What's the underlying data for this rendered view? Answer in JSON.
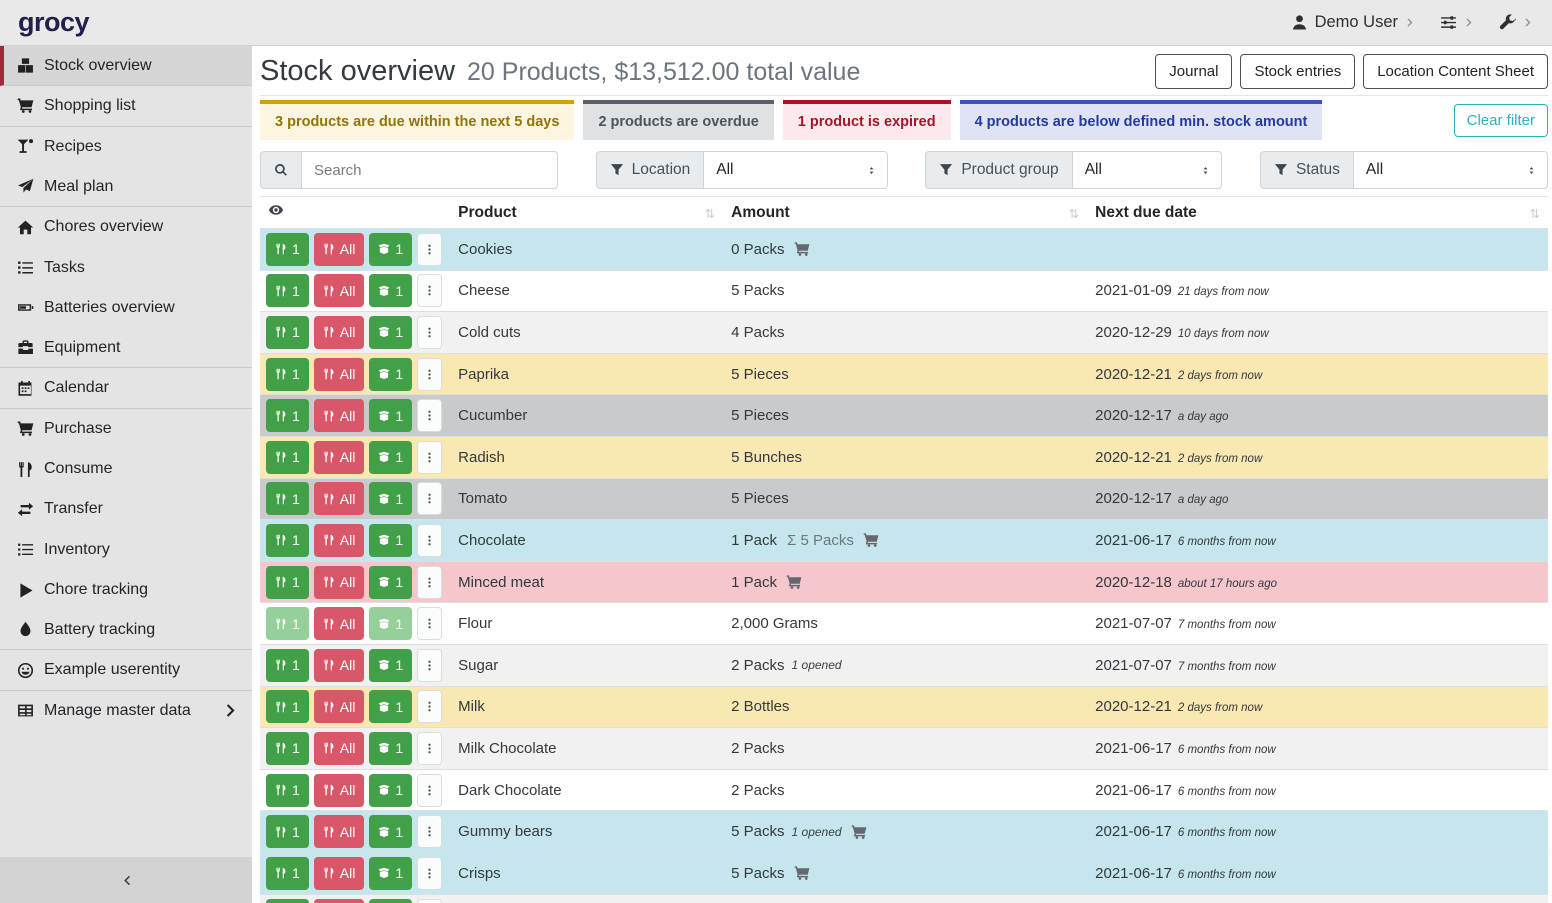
{
  "topbar": {
    "logo": "grocy",
    "user_label": "Demo User",
    "menus": [
      {
        "icon": "user-icon",
        "label": "Demo User"
      },
      {
        "icon": "sliders-icon"
      },
      {
        "icon": "wrench-icon"
      }
    ]
  },
  "sidebar": {
    "items": [
      {
        "icon": "boxes-icon",
        "label": "Stock overview",
        "active": true,
        "divider_after": true
      },
      {
        "icon": "shopping-cart-icon",
        "label": "Shopping list",
        "divider_after": true
      },
      {
        "icon": "cocktail-glass-icon",
        "label": "Recipes"
      },
      {
        "icon": "paper-plane-icon",
        "label": "Meal plan",
        "divider_after": true
      },
      {
        "icon": "home-icon",
        "label": "Chores overview"
      },
      {
        "icon": "tasks-icon",
        "label": "Tasks"
      },
      {
        "icon": "battery-icon",
        "label": "Batteries overview"
      },
      {
        "icon": "toolbox-icon",
        "label": "Equipment",
        "divider_after": true
      },
      {
        "icon": "calendar-icon",
        "label": "Calendar",
        "divider_after": true
      },
      {
        "icon": "shopping-cart-icon",
        "label": "Purchase"
      },
      {
        "icon": "utensils-icon",
        "label": "Consume"
      },
      {
        "icon": "exchange-arrows-icon",
        "label": "Transfer"
      },
      {
        "icon": "list-icon",
        "label": "Inventory"
      },
      {
        "icon": "play-icon",
        "label": "Chore tracking"
      },
      {
        "icon": "droplet-icon",
        "label": "Battery tracking",
        "divider_after": true
      },
      {
        "icon": "smiley-icon",
        "label": "Example userentity",
        "divider_after": true
      },
      {
        "icon": "table-grid-icon",
        "label": "Manage master data",
        "chevron": true
      }
    ],
    "collapse_icon": "chevron-left-icon"
  },
  "header": {
    "title": "Stock overview",
    "subtitle": "20 Products, $13,512.00 total value",
    "buttons": [
      "Journal",
      "Stock entries",
      "Location Content Sheet"
    ]
  },
  "banners": [
    {
      "type": "warning",
      "text": "3 products are due within the next 5 days"
    },
    {
      "type": "secondary",
      "text": "2 products are overdue"
    },
    {
      "type": "danger",
      "text": "1 product is expired"
    },
    {
      "type": "primary",
      "text": "4 products are below defined min. stock amount"
    }
  ],
  "clear_filter_label": "Clear filter",
  "filters": {
    "search_placeholder": "Search",
    "groups": [
      {
        "icon": "funnel-icon",
        "label": "Location",
        "value": "All"
      },
      {
        "icon": "funnel-icon",
        "label": "Product group",
        "value": "All"
      },
      {
        "icon": "funnel-icon",
        "label": "Status",
        "value": "All"
      }
    ]
  },
  "table": {
    "columns": [
      "Product",
      "Amount",
      "Next due date"
    ],
    "sort_glyph": "⇅",
    "row_buttons": {
      "consume_one": "1",
      "consume_all": "All",
      "open_one": "1"
    },
    "rows": [
      {
        "product": "Cookies",
        "amount": "0 Packs",
        "cart": true,
        "style": "info",
        "date": "",
        "relative": ""
      },
      {
        "product": "Cheese",
        "amount": "5 Packs",
        "style": "plain",
        "date": "2021-01-09",
        "relative": "21 days from now"
      },
      {
        "product": "Cold cuts",
        "amount": "4 Packs",
        "style": "stripe",
        "date": "2020-12-29",
        "relative": "10 days from now"
      },
      {
        "product": "Paprika",
        "amount": "5 Pieces",
        "style": "warning",
        "date": "2020-12-21",
        "relative": "2 days from now"
      },
      {
        "product": "Cucumber",
        "amount": "5 Pieces",
        "style": "secondary",
        "date": "2020-12-17",
        "relative": "a day ago"
      },
      {
        "product": "Radish",
        "amount": "5 Bunches",
        "style": "warning",
        "date": "2020-12-21",
        "relative": "2 days from now"
      },
      {
        "product": "Tomato",
        "amount": "5 Pieces",
        "style": "secondary",
        "date": "2020-12-17",
        "relative": "a day ago"
      },
      {
        "product": "Chocolate",
        "amount": "1 Pack",
        "sum": "Σ 5 Packs",
        "cart": true,
        "style": "info",
        "date": "2021-06-17",
        "relative": "6 months from now"
      },
      {
        "product": "Minced meat",
        "amount": "1 Pack",
        "cart": true,
        "style": "danger",
        "date": "2020-12-18",
        "relative": "about 17 hours ago"
      },
      {
        "product": "Flour",
        "amount": "2,000 Grams",
        "style": "plain",
        "faded": true,
        "date": "2021-07-07",
        "relative": "7 months from now"
      },
      {
        "product": "Sugar",
        "amount": "2 Packs",
        "opened": "1 opened",
        "style": "stripe",
        "date": "2021-07-07",
        "relative": "7 months from now"
      },
      {
        "product": "Milk",
        "amount": "2 Bottles",
        "style": "warning",
        "date": "2020-12-21",
        "relative": "2 days from now"
      },
      {
        "product": "Milk Chocolate",
        "amount": "2 Packs",
        "style": "stripe",
        "date": "2021-06-17",
        "relative": "6 months from now"
      },
      {
        "product": "Dark Chocolate",
        "amount": "2 Packs",
        "style": "plain",
        "date": "2021-06-17",
        "relative": "6 months from now"
      },
      {
        "product": "Gummy bears",
        "amount": "5 Packs",
        "opened": "1 opened",
        "cart": true,
        "style": "info",
        "date": "2021-06-17",
        "relative": "6 months from now"
      },
      {
        "product": "Crisps",
        "amount": "5 Packs",
        "cart": true,
        "style": "info",
        "date": "2021-06-17",
        "relative": "6 months from now"
      },
      {
        "product": "",
        "amount": "",
        "style": "stripe",
        "partial": true,
        "date": "",
        "relative": ""
      }
    ]
  },
  "colors": {
    "brand_red": "#a02a3c",
    "topbar_bg": "#e9e9e9",
    "sidebar_bg": "#e4e4e4",
    "banner_warning_border": "#d0a206",
    "banner_secondary_border": "#5b6269",
    "banner_danger_border": "#b01225",
    "banner_primary_border": "#3d54b6",
    "row_info": "#c6e6ee",
    "row_warning": "#fae8b3",
    "row_secondary": "#c9cacc",
    "row_danger": "#f5c7cd",
    "btn_green": "#42a148",
    "btn_green_faded": "#95d09b",
    "btn_red": "#d8586a",
    "clear_filter_teal": "#2fafc2"
  }
}
